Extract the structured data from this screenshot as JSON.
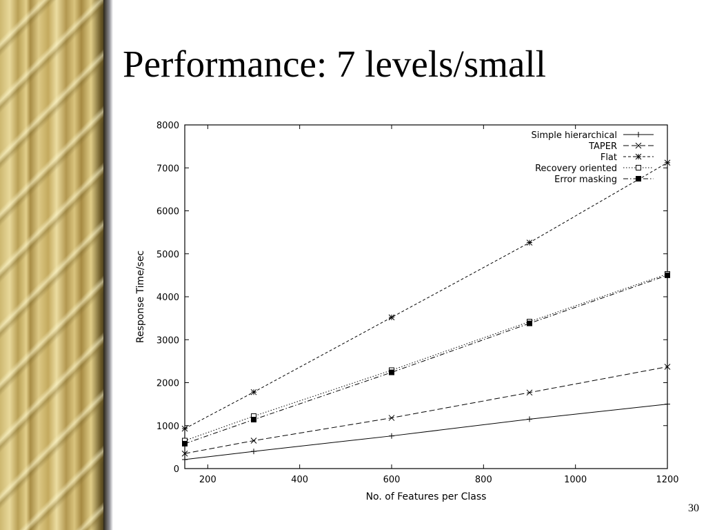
{
  "slide": {
    "title": "Performance: 7 levels/small",
    "page_number": "30"
  },
  "chart_data": {
    "type": "line",
    "title": "",
    "xlabel": "No. of Features per Class",
    "ylabel": "Response Time/sec",
    "xlim": [
      150,
      1200
    ],
    "ylim": [
      0,
      8000
    ],
    "xticks": [
      200,
      400,
      600,
      800,
      1000,
      1200
    ],
    "yticks": [
      0,
      1000,
      2000,
      3000,
      4000,
      5000,
      6000,
      7000,
      8000
    ],
    "grid": false,
    "legend_position": "top-right",
    "series": [
      {
        "name": "Simple hierarchical",
        "marker": "plus",
        "dash": "solid",
        "x": [
          150,
          300,
          600,
          900,
          1200
        ],
        "y": [
          210,
          400,
          760,
          1150,
          1500
        ]
      },
      {
        "name": "TAPER",
        "marker": "x",
        "dash": "dashed",
        "x": [
          150,
          300,
          600,
          900,
          1200
        ],
        "y": [
          350,
          650,
          1180,
          1770,
          2370
        ]
      },
      {
        "name": "Flat",
        "marker": "asterisk",
        "dash": "short-dashed",
        "x": [
          150,
          300,
          600,
          900,
          1200
        ],
        "y": [
          930,
          1780,
          3520,
          5260,
          7120
        ]
      },
      {
        "name": "Recovery oriented",
        "marker": "open-square",
        "dash": "dotted",
        "x": [
          150,
          300,
          600,
          900,
          1200
        ],
        "y": [
          650,
          1220,
          2290,
          3420,
          4530
        ]
      },
      {
        "name": "Error masking",
        "marker": "filled-square",
        "dash": "dash-dot",
        "x": [
          150,
          300,
          600,
          900,
          1200
        ],
        "y": [
          580,
          1140,
          2240,
          3380,
          4500
        ]
      }
    ]
  }
}
